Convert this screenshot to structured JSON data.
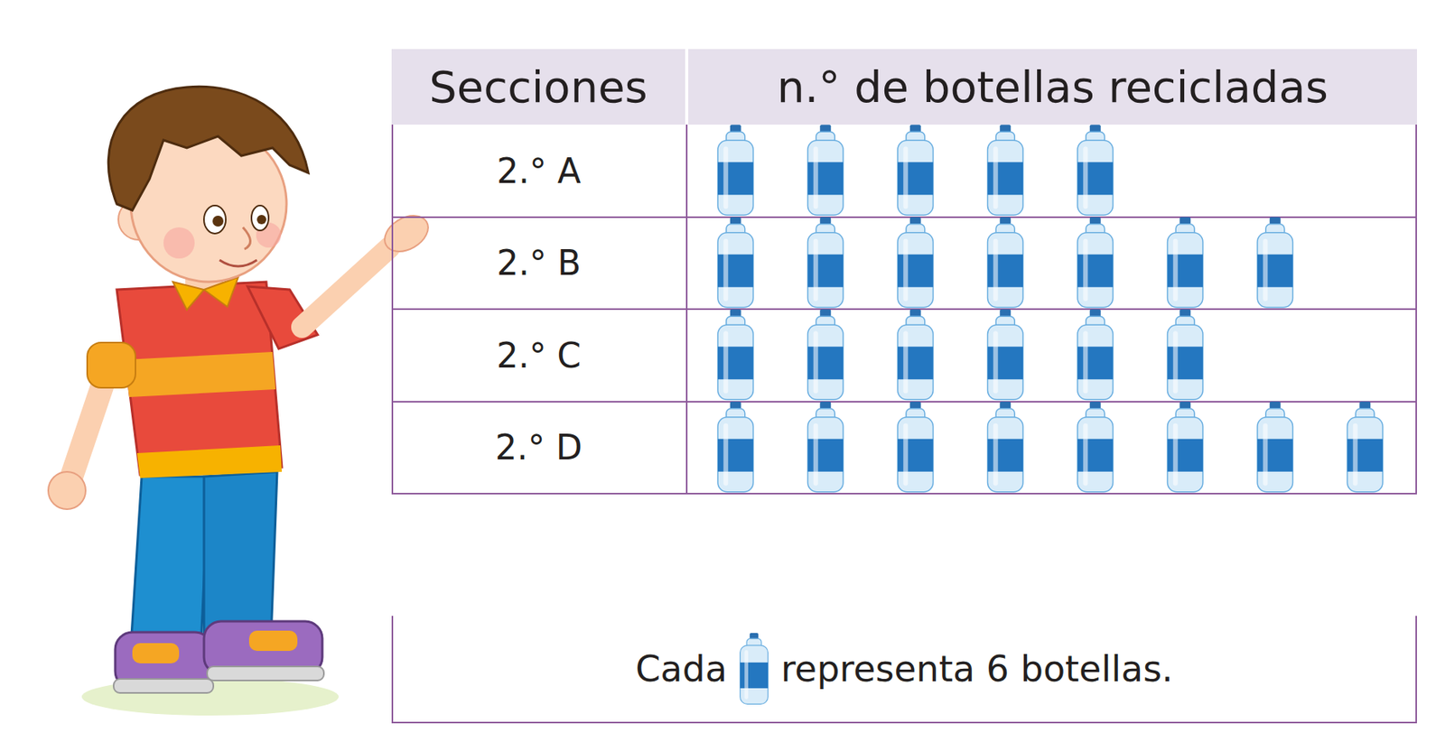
{
  "chart_data": {
    "type": "pictograph",
    "xlabel": "n.° de botellas recicladas",
    "ylabel": "Secciones",
    "categories": [
      "2.° A",
      "2.° B",
      "2.° C",
      "2.° D"
    ],
    "values": [
      30,
      42,
      36,
      48
    ],
    "per_icon": 6,
    "xlim": [
      0,
      48
    ],
    "tick_labels": "y",
    "grid": false,
    "orientation": "horizontal",
    "color": "#2477c0",
    "key": {
      "before": "Cada",
      "after": "representa 6 botellas."
    }
  }
}
